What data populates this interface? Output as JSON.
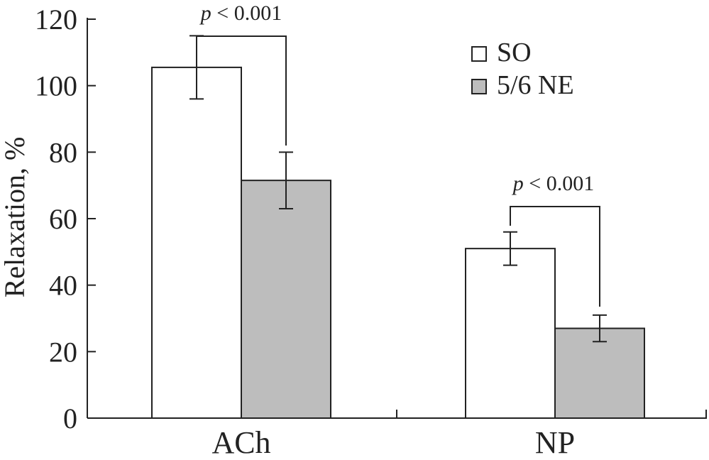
{
  "chart_data": {
    "type": "bar",
    "categories": [
      "ACh",
      "NP"
    ],
    "series": [
      {
        "name": "SO",
        "values": [
          105.5,
          51
        ],
        "errors": [
          9.5,
          5
        ],
        "color": "#ffffff"
      },
      {
        "name": "5/6 NE",
        "values": [
          71.5,
          27
        ],
        "errors": [
          8.5,
          4
        ],
        "color": "#bdbdbd"
      }
    ],
    "ylabel": "Relaxation, %",
    "xlabel": "",
    "ylim": [
      0,
      120
    ],
    "yticks": [
      "0",
      "20",
      "40",
      "60",
      "80",
      "100",
      "120"
    ],
    "grid": false,
    "legend_position": "top-right",
    "annotations": [
      {
        "p_symbol": "p",
        "text": "< 0.001",
        "category": "ACh"
      },
      {
        "p_symbol": "p",
        "text": "< 0.001",
        "category": "NP"
      }
    ]
  }
}
